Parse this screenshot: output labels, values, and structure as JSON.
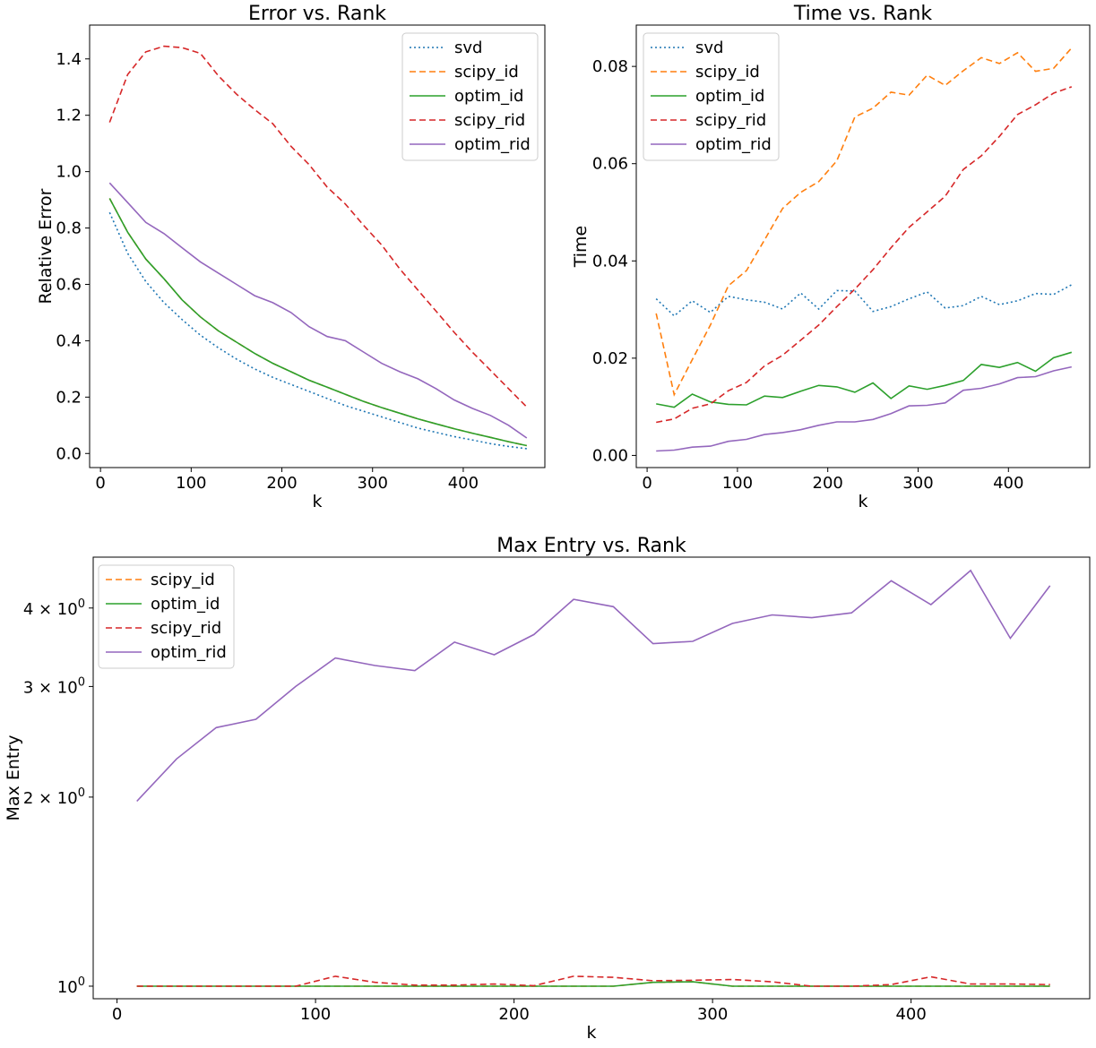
{
  "colors": {
    "svd": "#1f77b4",
    "scipy_id": "#ff7f0e",
    "optim_id": "#2ca02c",
    "scipy_rid": "#d62728",
    "optim_rid": "#9467bd"
  },
  "chart_data": [
    {
      "type": "line",
      "title": "Error vs. Rank",
      "xlabel": "k",
      "ylabel": "Relative Error",
      "xlim": [
        -12,
        490
      ],
      "ylim": [
        -0.05,
        1.52
      ],
      "xticks": [
        0,
        100,
        200,
        300,
        400
      ],
      "yticks": [
        0.0,
        0.2,
        0.4,
        0.6,
        0.8,
        1.0,
        1.2,
        1.4
      ],
      "ytick_labels": [
        "0.0",
        "0.2",
        "0.4",
        "0.6",
        "0.8",
        "1.0",
        "1.2",
        "1.4"
      ],
      "legend_position": "top-right",
      "x": [
        10,
        30,
        50,
        70,
        90,
        110,
        130,
        150,
        170,
        190,
        210,
        230,
        250,
        270,
        290,
        310,
        330,
        350,
        370,
        390,
        410,
        430,
        450,
        470
      ],
      "series": [
        {
          "name": "svd",
          "style": "dotted",
          "values": [
            0.855,
            0.71,
            0.61,
            0.535,
            0.475,
            0.42,
            0.375,
            0.335,
            0.3,
            0.27,
            0.245,
            0.22,
            0.195,
            0.17,
            0.15,
            0.13,
            0.11,
            0.09,
            0.075,
            0.06,
            0.048,
            0.035,
            0.025,
            0.017
          ]
        },
        {
          "name": "scipy_id",
          "style": "dashed",
          "values": [
            0.905,
            0.785,
            0.69,
            0.62,
            0.545,
            0.485,
            0.435,
            0.395,
            0.355,
            0.32,
            0.29,
            0.26,
            0.235,
            0.21,
            0.185,
            0.163,
            0.143,
            0.123,
            0.105,
            0.088,
            0.072,
            0.057,
            0.042,
            0.028
          ]
        },
        {
          "name": "optim_id",
          "style": "solid",
          "values": [
            0.905,
            0.785,
            0.69,
            0.62,
            0.545,
            0.485,
            0.435,
            0.395,
            0.355,
            0.32,
            0.29,
            0.26,
            0.235,
            0.21,
            0.185,
            0.163,
            0.143,
            0.123,
            0.105,
            0.088,
            0.072,
            0.057,
            0.042,
            0.028
          ]
        },
        {
          "name": "scipy_rid",
          "style": "dashed",
          "values": [
            1.175,
            1.345,
            1.425,
            1.445,
            1.44,
            1.42,
            1.34,
            1.275,
            1.22,
            1.17,
            1.09,
            1.025,
            0.945,
            0.885,
            0.81,
            0.74,
            0.655,
            0.58,
            0.505,
            0.43,
            0.36,
            0.295,
            0.23,
            0.165
          ]
        },
        {
          "name": "optim_rid",
          "style": "solid",
          "values": [
            0.96,
            0.89,
            0.82,
            0.78,
            0.73,
            0.68,
            0.64,
            0.6,
            0.56,
            0.535,
            0.5,
            0.45,
            0.415,
            0.4,
            0.36,
            0.32,
            0.29,
            0.265,
            0.23,
            0.19,
            0.16,
            0.135,
            0.1,
            0.055
          ]
        }
      ]
    },
    {
      "type": "line",
      "title": "Time vs. Rank",
      "xlabel": "k",
      "ylabel": "Time",
      "xlim": [
        -12,
        490
      ],
      "ylim": [
        -0.0025,
        0.0885
      ],
      "xticks": [
        0,
        100,
        200,
        300,
        400
      ],
      "yticks": [
        0.0,
        0.02,
        0.04,
        0.06,
        0.08
      ],
      "ytick_labels": [
        "0.00",
        "0.02",
        "0.04",
        "0.06",
        "0.08"
      ],
      "legend_position": "top-left",
      "x": [
        10,
        30,
        50,
        70,
        90,
        110,
        130,
        150,
        170,
        190,
        210,
        230,
        250,
        270,
        290,
        310,
        330,
        350,
        370,
        390,
        410,
        430,
        450,
        470
      ],
      "series": [
        {
          "name": "svd",
          "style": "dotted",
          "values": [
            0.0322,
            0.0287,
            0.0318,
            0.0294,
            0.0327,
            0.032,
            0.0315,
            0.0301,
            0.0334,
            0.0301,
            0.0339,
            0.0338,
            0.0296,
            0.0306,
            0.0322,
            0.0336,
            0.0303,
            0.0308,
            0.0327,
            0.031,
            0.0318,
            0.0333,
            0.0331,
            0.0351
          ]
        },
        {
          "name": "scipy_id",
          "style": "dashed",
          "values": [
            0.0292,
            0.0125,
            0.0197,
            0.0268,
            0.0349,
            0.038,
            0.0443,
            0.0508,
            0.0541,
            0.0563,
            0.0606,
            0.0696,
            0.0714,
            0.0747,
            0.0741,
            0.0782,
            0.0761,
            0.0791,
            0.0818,
            0.0806,
            0.0828,
            0.079,
            0.0796,
            0.0838
          ]
        },
        {
          "name": "optim_id",
          "style": "solid",
          "values": [
            0.0106,
            0.0099,
            0.0126,
            0.011,
            0.0105,
            0.0104,
            0.0122,
            0.0119,
            0.0132,
            0.0144,
            0.0141,
            0.013,
            0.0149,
            0.0117,
            0.0143,
            0.0136,
            0.0144,
            0.0154,
            0.0187,
            0.0181,
            0.0191,
            0.0173,
            0.0201,
            0.0212
          ]
        },
        {
          "name": "scipy_rid",
          "style": "dashed",
          "values": [
            0.0068,
            0.0075,
            0.0097,
            0.0106,
            0.0133,
            0.015,
            0.0184,
            0.0206,
            0.0237,
            0.0268,
            0.0306,
            0.0342,
            0.0382,
            0.0427,
            0.0469,
            0.0501,
            0.0533,
            0.0588,
            0.0616,
            0.0656,
            0.0701,
            0.0721,
            0.0745,
            0.0758
          ]
        },
        {
          "name": "optim_rid",
          "style": "solid",
          "values": [
            0.0009,
            0.0011,
            0.0017,
            0.0019,
            0.0029,
            0.0033,
            0.0043,
            0.0047,
            0.0053,
            0.0062,
            0.0069,
            0.0069,
            0.0074,
            0.0086,
            0.0102,
            0.0103,
            0.0108,
            0.0134,
            0.0138,
            0.0147,
            0.016,
            0.0162,
            0.0174,
            0.0182
          ]
        }
      ]
    },
    {
      "type": "line",
      "title": "Max Entry vs. Rank",
      "xlabel": "k",
      "ylabel": "Max Entry",
      "yscale": "log",
      "xlim": [
        -12,
        490
      ],
      "ylim": [
        0.955,
        4.82
      ],
      "xticks": [
        0,
        100,
        200,
        300,
        400
      ],
      "yticks": [
        1,
        2,
        3,
        4
      ],
      "ytick_bases": [
        "10",
        "2 × 10",
        "3 × 10",
        "4 × 10"
      ],
      "ytick_exponent": "0",
      "legend_position": "top-left",
      "x": [
        10,
        30,
        50,
        70,
        90,
        110,
        130,
        150,
        170,
        190,
        210,
        230,
        250,
        270,
        290,
        310,
        330,
        350,
        370,
        390,
        410,
        430,
        450,
        470
      ],
      "series": [
        {
          "name": "scipy_id",
          "style": "dashed",
          "values": [
            1.0,
            1.0,
            1.0,
            1.0,
            1.0,
            1.0,
            1.0,
            1.0,
            1.0,
            1.0,
            1.0,
            1.0,
            1.0,
            1.014,
            1.016,
            1.0,
            1.0,
            1.0,
            1.0,
            1.0,
            1.0,
            1.0,
            1.0,
            1.0
          ]
        },
        {
          "name": "optim_id",
          "style": "solid",
          "values": [
            1.0,
            1.0,
            1.0,
            1.0,
            1.0,
            1.0,
            1.0,
            1.0,
            1.0,
            1.0,
            1.0,
            1.0,
            1.0,
            1.014,
            1.016,
            1.0,
            1.0,
            1.0,
            1.0,
            1.0,
            1.0,
            1.0,
            1.0,
            1.0
          ]
        },
        {
          "name": "scipy_rid",
          "style": "dashed",
          "values": [
            1.0,
            1.0,
            1.0,
            1.0,
            1.0,
            1.037,
            1.014,
            1.004,
            1.004,
            1.008,
            1.002,
            1.037,
            1.033,
            1.02,
            1.022,
            1.025,
            1.016,
            1.0,
            1.0,
            1.006,
            1.035,
            1.008,
            1.008,
            1.006
          ]
        },
        {
          "name": "optim_rid",
          "style": "solid",
          "values": [
            1.97,
            2.3,
            2.58,
            2.66,
            3.0,
            3.33,
            3.24,
            3.18,
            3.53,
            3.37,
            3.63,
            4.13,
            4.02,
            3.51,
            3.54,
            3.78,
            3.9,
            3.86,
            3.93,
            4.42,
            4.05,
            4.59,
            3.58,
            4.34
          ]
        }
      ]
    }
  ]
}
